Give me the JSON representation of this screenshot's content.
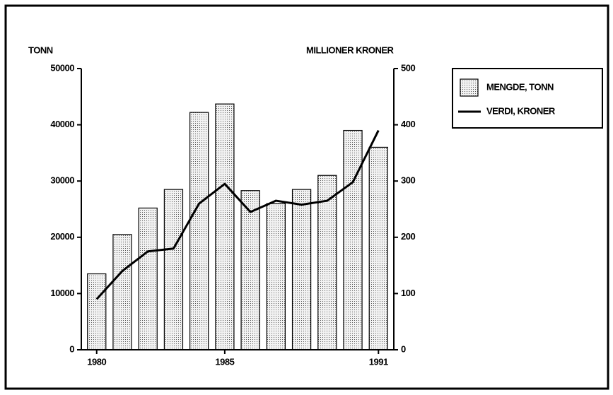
{
  "chart_data": {
    "type": "bar_line",
    "y_label": "TONN",
    "y2_label": "MILLIONER KRONER",
    "x": [
      1980,
      1981,
      1982,
      1983,
      1984,
      1985,
      1986,
      1987,
      1988,
      1989,
      1990,
      1991
    ],
    "xlim": [
      1979.4,
      1991.6
    ],
    "xticks": [
      1980,
      1985,
      1991
    ],
    "ylim": [
      0,
      50000
    ],
    "yticks": [
      0,
      10000,
      20000,
      30000,
      40000,
      50000
    ],
    "y2lim": [
      0,
      500
    ],
    "y2ticks": [
      0,
      100,
      200,
      300,
      400,
      500
    ],
    "series": [
      {
        "name": "MENGDE, TONN",
        "type": "bar",
        "color": "#c8c8c8",
        "values": [
          13500,
          20500,
          25200,
          28500,
          42200,
          43700,
          28300,
          26000,
          28500,
          31000,
          39000,
          36000
        ]
      },
      {
        "name": "VERDI, KRONER",
        "type": "line",
        "axis": "y2",
        "color": "#000000",
        "values": [
          90,
          140,
          175,
          180,
          260,
          295,
          245,
          265,
          258,
          265,
          298,
          390
        ]
      }
    ]
  }
}
